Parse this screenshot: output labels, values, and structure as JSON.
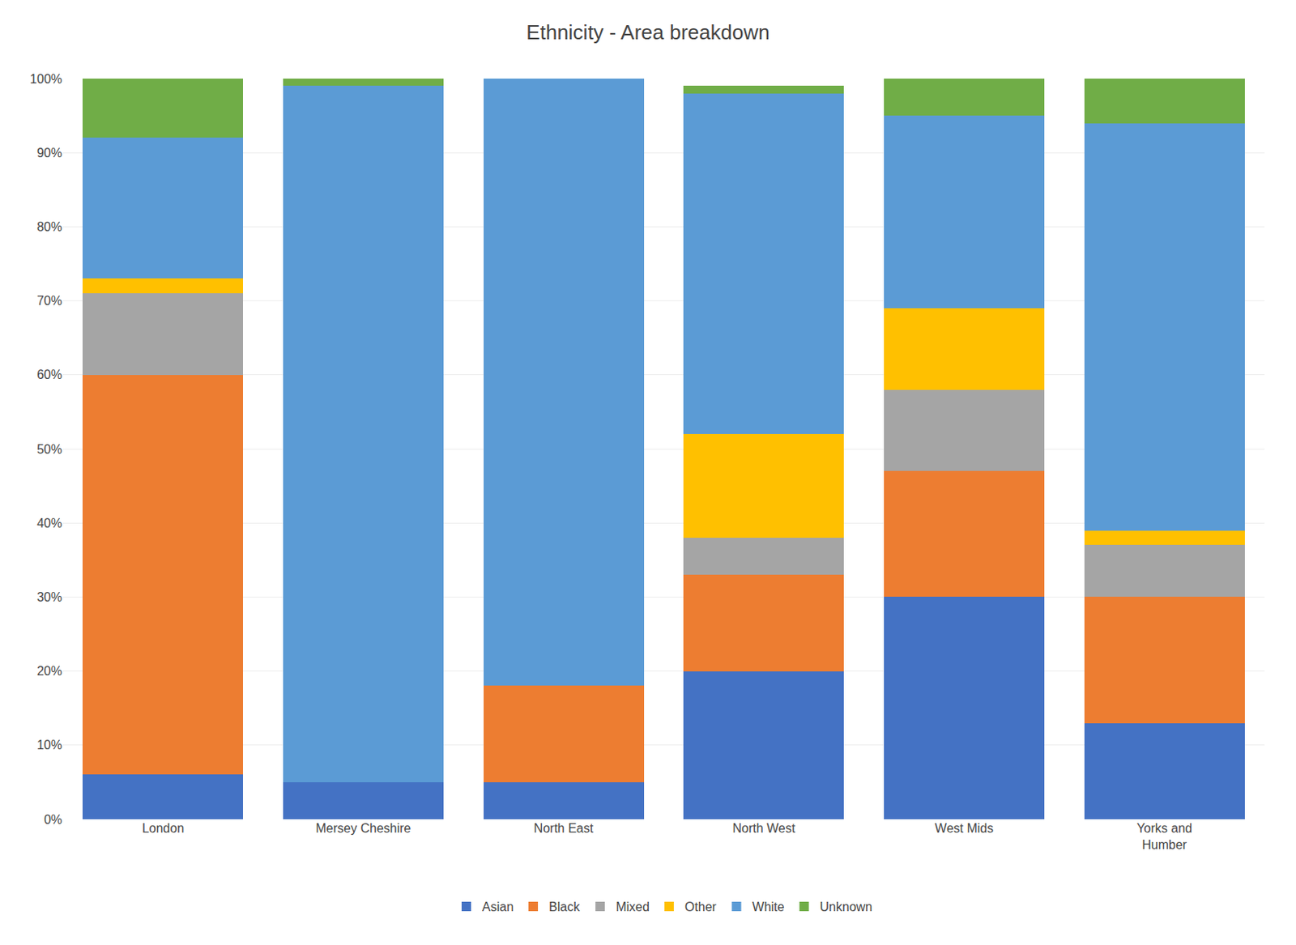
{
  "chart_data": {
    "type": "bar",
    "title": "Ethnicity - Area breakdown",
    "categories": [
      "London",
      "Mersey Cheshire",
      "North East",
      "North West",
      "West Mids",
      "Yorks and\nHumber"
    ],
    "series": [
      {
        "name": "Asian",
        "color": "#4472c4",
        "values": [
          6,
          5,
          5,
          20,
          30,
          13
        ]
      },
      {
        "name": "Black",
        "color": "#ed7d31",
        "values": [
          54,
          0,
          13,
          13,
          17,
          17
        ]
      },
      {
        "name": "Mixed",
        "color": "#a5a5a5",
        "values": [
          11,
          0,
          0,
          5,
          11,
          7
        ]
      },
      {
        "name": "Other",
        "color": "#ffc000",
        "values": [
          2,
          0,
          0,
          14,
          11,
          2
        ]
      },
      {
        "name": "White",
        "color": "#5b9bd5",
        "values": [
          19,
          94,
          82,
          46,
          26,
          55
        ]
      },
      {
        "name": "Unknown",
        "color": "#70ad47",
        "values": [
          8,
          1,
          0,
          1,
          5,
          6
        ]
      }
    ],
    "stacked": true,
    "ylim": [
      0,
      100
    ],
    "yticks": [
      {
        "value": 0,
        "label": "0%"
      },
      {
        "value": 10,
        "label": "10%"
      },
      {
        "value": 20,
        "label": "20%"
      },
      {
        "value": 30,
        "label": "30%"
      },
      {
        "value": 40,
        "label": "40%"
      },
      {
        "value": 50,
        "label": "50%"
      },
      {
        "value": 60,
        "label": "60%"
      },
      {
        "value": 70,
        "label": "70%"
      },
      {
        "value": 80,
        "label": "80%"
      },
      {
        "value": 90,
        "label": "90%"
      },
      {
        "value": 100,
        "label": "100%"
      }
    ],
    "grid": true,
    "legend": "bottom"
  }
}
